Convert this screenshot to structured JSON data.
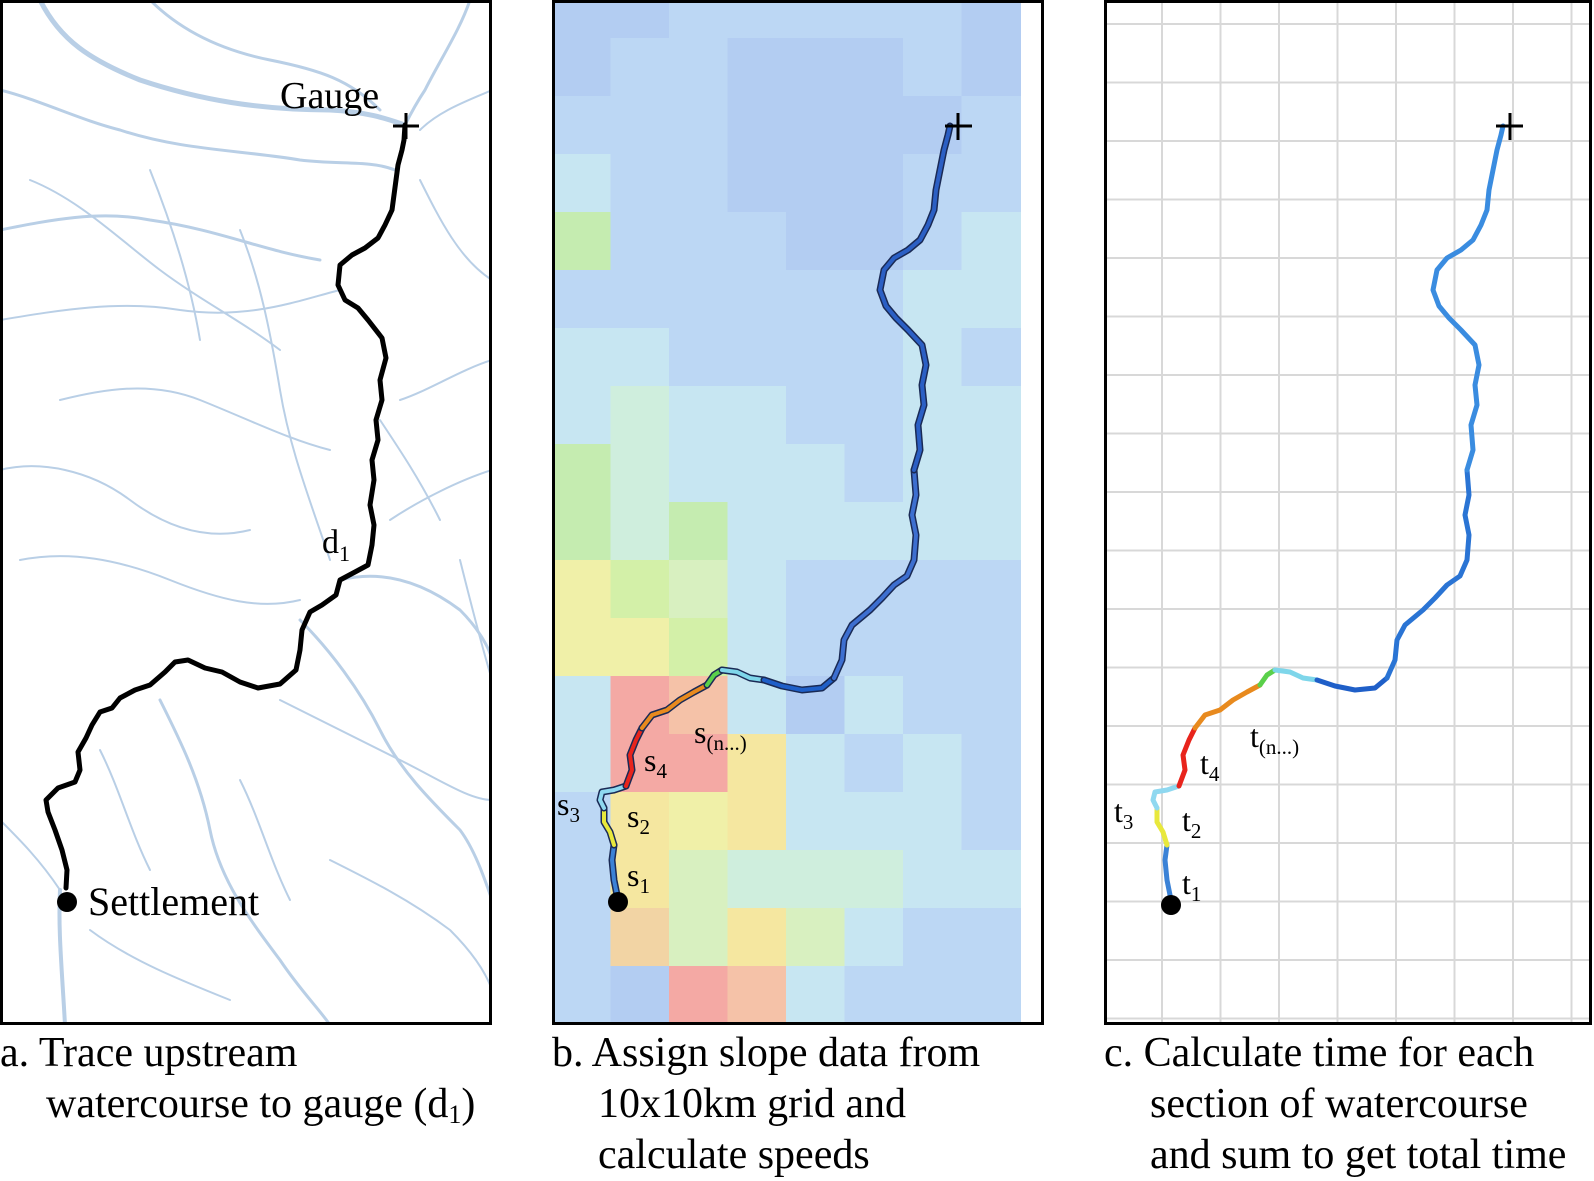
{
  "panel_a": {
    "gauge_label": "Gauge",
    "settlement_label": "Settlement",
    "distance_label": "d",
    "distance_sub": "1",
    "caption_line1": "a. Trace upstream",
    "caption_line2": "watercourse to gauge (d",
    "caption_sub": "1",
    "caption_end": ")"
  },
  "panel_b": {
    "segment_labels": [
      {
        "main": "s",
        "sub": "1"
      },
      {
        "main": "s",
        "sub": "2"
      },
      {
        "main": "s",
        "sub": "3"
      },
      {
        "main": "s",
        "sub": "4"
      },
      {
        "main": "s",
        "sub": "(n...)"
      }
    ],
    "caption_line1": "b. Assign slope data from",
    "caption_line2": "10x10km grid and",
    "caption_line3": "calculate speeds"
  },
  "panel_c": {
    "segment_labels": [
      {
        "main": "t",
        "sub": "1"
      },
      {
        "main": "t",
        "sub": "2"
      },
      {
        "main": "t",
        "sub": "3"
      },
      {
        "main": "t",
        "sub": "4"
      },
      {
        "main": "t",
        "sub": "(n...)"
      }
    ],
    "caption_line1": "c. Calculate time for each",
    "caption_line2": "section of watercourse",
    "caption_line3": "and sum to get total time"
  },
  "colors": {
    "river_network": "#b9cfe6",
    "trace_line": "#000000",
    "slow_segment": "#e8241c",
    "fast_segment": "#1f5fc8"
  }
}
